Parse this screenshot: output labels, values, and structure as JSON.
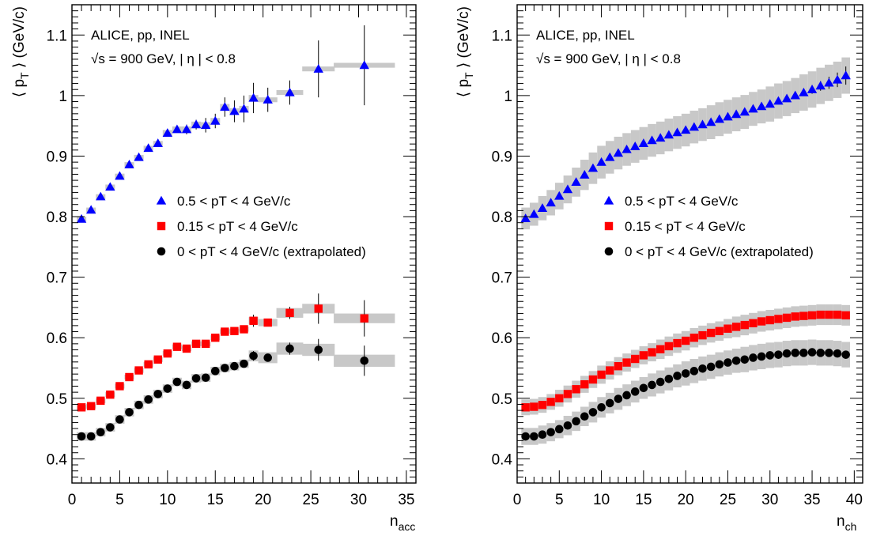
{
  "colors": {
    "series_0": "#0000ff",
    "series_1": "#ff0000",
    "series_2": "#000000",
    "systematic_band": "#c8c8c8"
  },
  "chart_data": [
    {
      "type": "scatter",
      "xlabel": "n",
      "xlabel_sub": "acc",
      "ylabel": "⟨ p",
      "ylabel_sub": "T",
      "ylabel_tail": " ⟩ (GeV/c)",
      "xlim": [
        0,
        36
      ],
      "ylim": [
        0.36,
        1.15
      ],
      "xticks": [
        "0",
        "5",
        "10",
        "15",
        "20",
        "25",
        "30",
        "35"
      ],
      "yticks": [
        "0.4",
        "0.5",
        "0.6",
        "0.7",
        "0.8",
        "0.9",
        "1",
        "1.1"
      ],
      "annotation_lines": [
        "ALICE, pp, INEL",
        "√s = 900 GeV, | η | < 0.8"
      ],
      "legend_position": "center",
      "series": [
        {
          "name": "0.5 < pT < 4 GeV/c",
          "marker": "triangle",
          "x": [
            1,
            2,
            3,
            4,
            5,
            6,
            7,
            8,
            9,
            10,
            11,
            12,
            13,
            14,
            15,
            16,
            17,
            18,
            19,
            20.5,
            22.8,
            25.8,
            30.6
          ],
          "y": [
            0.796,
            0.811,
            0.833,
            0.849,
            0.867,
            0.886,
            0.898,
            0.913,
            0.921,
            0.938,
            0.944,
            0.944,
            0.952,
            0.951,
            0.958,
            0.981,
            0.974,
            0.978,
            0.996,
            0.993,
            1.005,
            1.044,
            1.05
          ],
          "stat_err": [
            0,
            0,
            0,
            0,
            0,
            0,
            0,
            0,
            0,
            0,
            0,
            0.008,
            0.008,
            0.012,
            0.012,
            0.016,
            0.018,
            0.022,
            0.025,
            0.02,
            0.02,
            0.047,
            0.066
          ],
          "sys_err": [
            0.004,
            0.004,
            0.004,
            0.004,
            0.004,
            0.004,
            0.004,
            0.004,
            0.004,
            0.005,
            0.005,
            0.005,
            0.005,
            0.005,
            0.005,
            0.005,
            0.005,
            0.005,
            0.005,
            0.004,
            0.004,
            0.004,
            0.004
          ],
          "bin_halfwidth": [
            0.5,
            0.5,
            0.5,
            0.5,
            0.5,
            0.5,
            0.5,
            0.5,
            0.5,
            0.5,
            0.5,
            0.5,
            0.5,
            0.5,
            0.5,
            0.5,
            0.5,
            0.5,
            0.5,
            1,
            1.4,
            1.7,
            3.2
          ]
        },
        {
          "name": "0.15 < pT < 4 GeV/c",
          "marker": "square",
          "x": [
            1,
            2,
            3,
            4,
            5,
            6,
            7,
            8,
            9,
            10,
            11,
            12,
            13,
            14,
            15,
            16,
            17,
            18,
            19,
            20.5,
            22.8,
            25.8,
            30.6
          ],
          "y": [
            0.485,
            0.487,
            0.496,
            0.506,
            0.52,
            0.535,
            0.546,
            0.556,
            0.564,
            0.574,
            0.585,
            0.582,
            0.59,
            0.59,
            0.6,
            0.61,
            0.611,
            0.614,
            0.628,
            0.625,
            0.641,
            0.648,
            0.632
          ],
          "stat_err": [
            0,
            0,
            0,
            0,
            0,
            0,
            0,
            0,
            0,
            0,
            0,
            0,
            0,
            0,
            0,
            0,
            0,
            0.006,
            0.01,
            0.006,
            0.01,
            0.025,
            0.03
          ],
          "sys_err": [
            0.004,
            0.004,
            0.004,
            0.004,
            0.004,
            0.004,
            0.004,
            0.004,
            0.004,
            0.004,
            0.004,
            0.004,
            0.004,
            0.004,
            0.004,
            0.004,
            0.004,
            0.004,
            0.006,
            0.006,
            0.008,
            0.008,
            0.008
          ],
          "bin_halfwidth": [
            0.5,
            0.5,
            0.5,
            0.5,
            0.5,
            0.5,
            0.5,
            0.5,
            0.5,
            0.5,
            0.5,
            0.5,
            0.5,
            0.5,
            0.5,
            0.5,
            0.5,
            0.5,
            0.5,
            1,
            1.4,
            1.7,
            3.2
          ]
        },
        {
          "name": "0 < pT < 4 GeV/c (extrapolated)",
          "marker": "circle",
          "x": [
            1,
            2,
            3,
            4,
            5,
            6,
            7,
            8,
            9,
            10,
            11,
            12,
            13,
            14,
            15,
            16,
            17,
            18,
            19,
            20.5,
            22.8,
            25.8,
            30.6
          ],
          "y": [
            0.437,
            0.437,
            0.444,
            0.452,
            0.465,
            0.477,
            0.489,
            0.498,
            0.507,
            0.516,
            0.527,
            0.522,
            0.533,
            0.534,
            0.545,
            0.55,
            0.553,
            0.557,
            0.57,
            0.567,
            0.582,
            0.58,
            0.562
          ],
          "stat_err": [
            0,
            0,
            0,
            0,
            0,
            0,
            0,
            0,
            0,
            0,
            0,
            0,
            0,
            0,
            0,
            0,
            0,
            0.006,
            0.008,
            0.006,
            0.01,
            0.018,
            0.025
          ],
          "sys_err": [
            0.007,
            0.007,
            0.007,
            0.007,
            0.007,
            0.007,
            0.007,
            0.007,
            0.007,
            0.007,
            0.007,
            0.007,
            0.007,
            0.007,
            0.007,
            0.007,
            0.007,
            0.007,
            0.009,
            0.009,
            0.01,
            0.01,
            0.01
          ],
          "bin_halfwidth": [
            0.5,
            0.5,
            0.5,
            0.5,
            0.5,
            0.5,
            0.5,
            0.5,
            0.5,
            0.5,
            0.5,
            0.5,
            0.5,
            0.5,
            0.5,
            0.5,
            0.5,
            0.5,
            0.5,
            1,
            1.4,
            1.7,
            3.2
          ]
        }
      ]
    },
    {
      "type": "scatter",
      "xlabel": "n",
      "xlabel_sub": "ch",
      "ylabel": "⟨ p",
      "ylabel_sub": "T",
      "ylabel_tail": " ⟩ (GeV/c)",
      "xlim": [
        0,
        41
      ],
      "ylim": [
        0.36,
        1.15
      ],
      "xticks": [
        "0",
        "5",
        "10",
        "15",
        "20",
        "25",
        "30",
        "35",
        "40"
      ],
      "yticks": [
        "0.4",
        "0.5",
        "0.6",
        "0.7",
        "0.8",
        "0.9",
        "1",
        "1.1"
      ],
      "annotation_lines": [
        "ALICE, pp, INEL",
        "√s = 900 GeV, | η | < 0.8"
      ],
      "legend_position": "center",
      "series": [
        {
          "name": "0.5 < pT < 4 GeV/c",
          "marker": "triangle",
          "x": [
            1,
            2,
            3,
            4,
            5,
            6,
            7,
            8,
            9,
            10,
            11,
            12,
            13,
            14,
            15,
            16,
            17,
            18,
            19,
            20,
            21,
            22,
            23,
            24,
            25,
            26,
            27,
            28,
            29,
            30,
            31,
            32,
            33,
            34,
            35,
            36,
            37,
            38,
            39
          ],
          "y": [
            0.797,
            0.804,
            0.814,
            0.823,
            0.834,
            0.845,
            0.857,
            0.869,
            0.88,
            0.89,
            0.898,
            0.905,
            0.911,
            0.916,
            0.921,
            0.926,
            0.93,
            0.935,
            0.939,
            0.943,
            0.948,
            0.952,
            0.956,
            0.961,
            0.965,
            0.969,
            0.973,
            0.978,
            0.982,
            0.986,
            0.991,
            0.995,
            1,
            1.005,
            1.01,
            1.016,
            1.021,
            1.026,
            1.033
          ],
          "stat_err": [
            0,
            0,
            0,
            0,
            0,
            0,
            0,
            0,
            0,
            0,
            0,
            0,
            0,
            0,
            0,
            0,
            0,
            0,
            0,
            0,
            0,
            0,
            0,
            0,
            0,
            0,
            0,
            0,
            0,
            0,
            0,
            0,
            0,
            0,
            0.007,
            0.008,
            0.01,
            0.012,
            0.015
          ],
          "sys_err": [
            0.018,
            0.019,
            0.02,
            0.021,
            0.022,
            0.023,
            0.024,
            0.025,
            0.026,
            0.027,
            0.027,
            0.027,
            0.027,
            0.027,
            0.027,
            0.027,
            0.027,
            0.027,
            0.027,
            0.027,
            0.027,
            0.027,
            0.028,
            0.028,
            0.028,
            0.028,
            0.028,
            0.028,
            0.028,
            0.029,
            0.029,
            0.029,
            0.029,
            0.03,
            0.03,
            0.03,
            0.03,
            0.03,
            0.03
          ],
          "bin_halfwidth": [
            0.5,
            0.5,
            0.5,
            0.5,
            0.5,
            0.5,
            0.5,
            0.5,
            0.5,
            0.5,
            0.5,
            0.5,
            0.5,
            0.5,
            0.5,
            0.5,
            0.5,
            0.5,
            0.5,
            0.5,
            0.5,
            0.5,
            0.5,
            0.5,
            0.5,
            0.5,
            0.5,
            0.5,
            0.5,
            0.5,
            0.5,
            0.5,
            0.5,
            0.5,
            0.5,
            0.5,
            0.5,
            0.5,
            0.5
          ]
        },
        {
          "name": "0.15 < pT < 4 GeV/c",
          "marker": "square",
          "x": [
            1,
            2,
            3,
            4,
            5,
            6,
            7,
            8,
            9,
            10,
            11,
            12,
            13,
            14,
            15,
            16,
            17,
            18,
            19,
            20,
            21,
            22,
            23,
            24,
            25,
            26,
            27,
            28,
            29,
            30,
            31,
            32,
            33,
            34,
            35,
            36,
            37,
            38,
            39
          ],
          "y": [
            0.485,
            0.486,
            0.489,
            0.494,
            0.5,
            0.507,
            0.515,
            0.523,
            0.531,
            0.539,
            0.546,
            0.553,
            0.559,
            0.565,
            0.571,
            0.576,
            0.581,
            0.586,
            0.591,
            0.595,
            0.6,
            0.604,
            0.608,
            0.611,
            0.615,
            0.618,
            0.621,
            0.624,
            0.627,
            0.629,
            0.631,
            0.633,
            0.635,
            0.636,
            0.637,
            0.638,
            0.638,
            0.638,
            0.637
          ],
          "stat_err": [
            0,
            0,
            0,
            0,
            0,
            0,
            0,
            0,
            0,
            0,
            0,
            0,
            0,
            0,
            0,
            0,
            0,
            0,
            0,
            0,
            0,
            0,
            0,
            0,
            0,
            0,
            0,
            0,
            0,
            0,
            0,
            0,
            0,
            0,
            0,
            0,
            0,
            0,
            0
          ],
          "sys_err": [
            0.013,
            0.013,
            0.013,
            0.013,
            0.014,
            0.014,
            0.014,
            0.014,
            0.014,
            0.015,
            0.015,
            0.015,
            0.015,
            0.015,
            0.015,
            0.015,
            0.016,
            0.016,
            0.016,
            0.016,
            0.016,
            0.016,
            0.016,
            0.016,
            0.016,
            0.017,
            0.017,
            0.017,
            0.017,
            0.017,
            0.017,
            0.017,
            0.017,
            0.017,
            0.017,
            0.017,
            0.017,
            0.017,
            0.017
          ],
          "bin_halfwidth": [
            0.5,
            0.5,
            0.5,
            0.5,
            0.5,
            0.5,
            0.5,
            0.5,
            0.5,
            0.5,
            0.5,
            0.5,
            0.5,
            0.5,
            0.5,
            0.5,
            0.5,
            0.5,
            0.5,
            0.5,
            0.5,
            0.5,
            0.5,
            0.5,
            0.5,
            0.5,
            0.5,
            0.5,
            0.5,
            0.5,
            0.5,
            0.5,
            0.5,
            0.5,
            0.5,
            0.5,
            0.5,
            0.5,
            0.5
          ]
        },
        {
          "name": "0 < pT < 4 GeV/c (extrapolated)",
          "marker": "circle",
          "x": [
            1,
            2,
            3,
            4,
            5,
            6,
            7,
            8,
            9,
            10,
            11,
            12,
            13,
            14,
            15,
            16,
            17,
            18,
            19,
            20,
            21,
            22,
            23,
            24,
            25,
            26,
            27,
            28,
            29,
            30,
            31,
            32,
            33,
            34,
            35,
            36,
            37,
            38,
            39
          ],
          "y": [
            0.437,
            0.437,
            0.44,
            0.444,
            0.449,
            0.455,
            0.462,
            0.47,
            0.477,
            0.485,
            0.492,
            0.499,
            0.505,
            0.511,
            0.517,
            0.522,
            0.527,
            0.532,
            0.537,
            0.541,
            0.545,
            0.549,
            0.552,
            0.556,
            0.559,
            0.562,
            0.564,
            0.567,
            0.569,
            0.571,
            0.572,
            0.574,
            0.575,
            0.575,
            0.576,
            0.575,
            0.575,
            0.574,
            0.572
          ],
          "stat_err": [
            0,
            0,
            0,
            0,
            0,
            0,
            0,
            0,
            0,
            0,
            0,
            0,
            0,
            0,
            0,
            0,
            0,
            0,
            0,
            0,
            0,
            0,
            0,
            0,
            0,
            0,
            0,
            0,
            0,
            0,
            0,
            0,
            0,
            0,
            0,
            0,
            0,
            0,
            0
          ],
          "sys_err": [
            0.014,
            0.014,
            0.015,
            0.015,
            0.015,
            0.016,
            0.016,
            0.016,
            0.017,
            0.017,
            0.017,
            0.018,
            0.018,
            0.018,
            0.018,
            0.019,
            0.019,
            0.019,
            0.019,
            0.02,
            0.02,
            0.02,
            0.02,
            0.02,
            0.02,
            0.02,
            0.021,
            0.021,
            0.021,
            0.021,
            0.021,
            0.021,
            0.021,
            0.021,
            0.021,
            0.021,
            0.021,
            0.021,
            0.021
          ],
          "bin_halfwidth": [
            0.5,
            0.5,
            0.5,
            0.5,
            0.5,
            0.5,
            0.5,
            0.5,
            0.5,
            0.5,
            0.5,
            0.5,
            0.5,
            0.5,
            0.5,
            0.5,
            0.5,
            0.5,
            0.5,
            0.5,
            0.5,
            0.5,
            0.5,
            0.5,
            0.5,
            0.5,
            0.5,
            0.5,
            0.5,
            0.5,
            0.5,
            0.5,
            0.5,
            0.5,
            0.5,
            0.5,
            0.5,
            0.5,
            0.5
          ]
        }
      ]
    }
  ]
}
